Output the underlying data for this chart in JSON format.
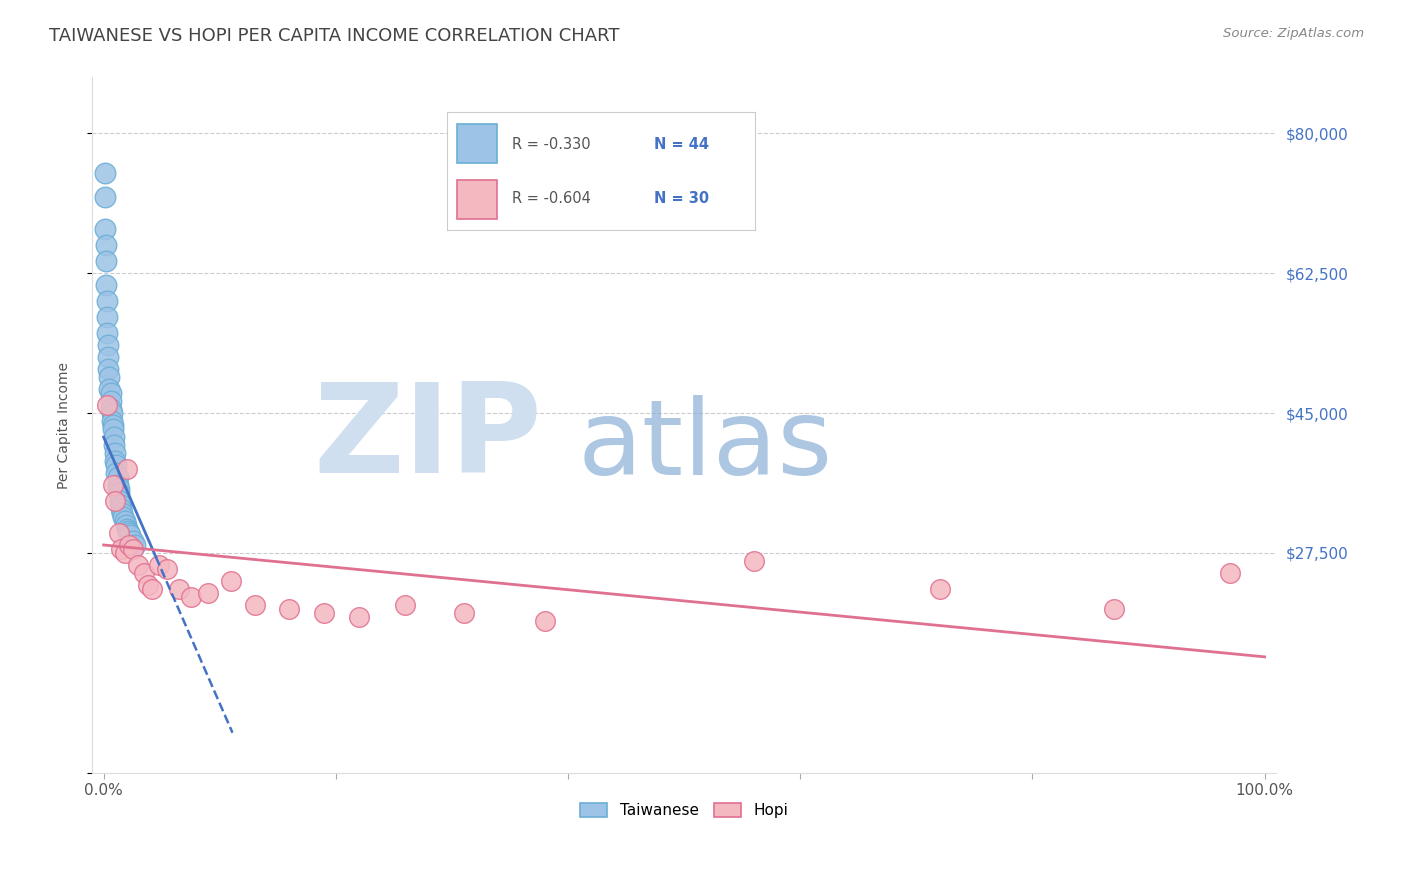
{
  "title": "TAIWANESE VS HOPI PER CAPITA INCOME CORRELATION CHART",
  "source": "Source: ZipAtlas.com",
  "ylabel": "Per Capita Income",
  "yticks": [
    0,
    27500,
    45000,
    62500,
    80000
  ],
  "ytick_labels": [
    "",
    "$27,500",
    "$45,000",
    "$62,500",
    "$80,000"
  ],
  "ylim": [
    0,
    87000
  ],
  "xlim": [
    -0.01,
    1.01
  ],
  "xticks": [
    0.0,
    0.2,
    0.4,
    0.6,
    0.8,
    1.0
  ],
  "xtick_labels": [
    "0.0%",
    "",
    "",
    "",
    "",
    "100.0%"
  ],
  "title_color": "#444444",
  "title_fontsize": 13,
  "source_color": "#888888",
  "yticklabel_color": "#4472c4",
  "watermark_zip": "ZIP",
  "watermark_atlas": "atlas",
  "watermark_color_zip": "#d0dff0",
  "watermark_color_atlas": "#8ab0d8",
  "legend_R1": "R = -0.330",
  "legend_N1": "N = 44",
  "legend_R2": "R = -0.604",
  "legend_N2": "N = 30",
  "legend_R_color": "#555555",
  "legend_N_color": "#4472c4",
  "taiwanese_color": "#9dc3e6",
  "hopi_color": "#f4b8c1",
  "taiwanese_edge": "#6aaed6",
  "hopi_edge": "#e07090",
  "trend_blue_color": "#4472c4",
  "trend_pink_color": "#e07090",
  "tw_trend_x0": 0.0,
  "tw_trend_x1": 0.045,
  "tw_trend_y0": 42000,
  "tw_trend_y1": 27000,
  "tw_trend_ext_y1": 5000,
  "ho_trend_x0": 0.0,
  "ho_trend_x1": 1.0,
  "ho_trend_y0": 28500,
  "ho_trend_y1": 14500,
  "taiwanese_x": [
    0.001,
    0.001,
    0.001,
    0.002,
    0.002,
    0.002,
    0.003,
    0.003,
    0.003,
    0.004,
    0.004,
    0.004,
    0.005,
    0.005,
    0.006,
    0.006,
    0.006,
    0.007,
    0.007,
    0.008,
    0.008,
    0.009,
    0.009,
    0.01,
    0.01,
    0.011,
    0.011,
    0.012,
    0.012,
    0.013,
    0.013,
    0.014,
    0.015,
    0.015,
    0.016,
    0.017,
    0.018,
    0.019,
    0.02,
    0.021,
    0.022,
    0.023,
    0.025,
    0.027
  ],
  "taiwanese_y": [
    75000,
    72000,
    68000,
    66000,
    64000,
    61000,
    59000,
    57000,
    55000,
    53500,
    52000,
    50500,
    49500,
    48000,
    47500,
    46500,
    45500,
    45000,
    44000,
    43500,
    43000,
    42000,
    41000,
    40000,
    39000,
    38500,
    37500,
    37000,
    36000,
    35500,
    35000,
    34000,
    33500,
    33000,
    32500,
    32000,
    31500,
    31000,
    30500,
    30200,
    30000,
    29800,
    29000,
    28500
  ],
  "hopi_x": [
    0.003,
    0.008,
    0.01,
    0.013,
    0.015,
    0.018,
    0.02,
    0.022,
    0.025,
    0.03,
    0.035,
    0.038,
    0.042,
    0.048,
    0.055,
    0.065,
    0.075,
    0.09,
    0.11,
    0.13,
    0.16,
    0.19,
    0.22,
    0.26,
    0.31,
    0.38,
    0.56,
    0.72,
    0.87,
    0.97
  ],
  "hopi_y": [
    46000,
    36000,
    34000,
    30000,
    28000,
    27500,
    38000,
    28500,
    28000,
    26000,
    25000,
    23500,
    23000,
    26000,
    25500,
    23000,
    22000,
    22500,
    24000,
    21000,
    20500,
    20000,
    19500,
    21000,
    20000,
    19000,
    26500,
    23000,
    20500,
    25000
  ]
}
